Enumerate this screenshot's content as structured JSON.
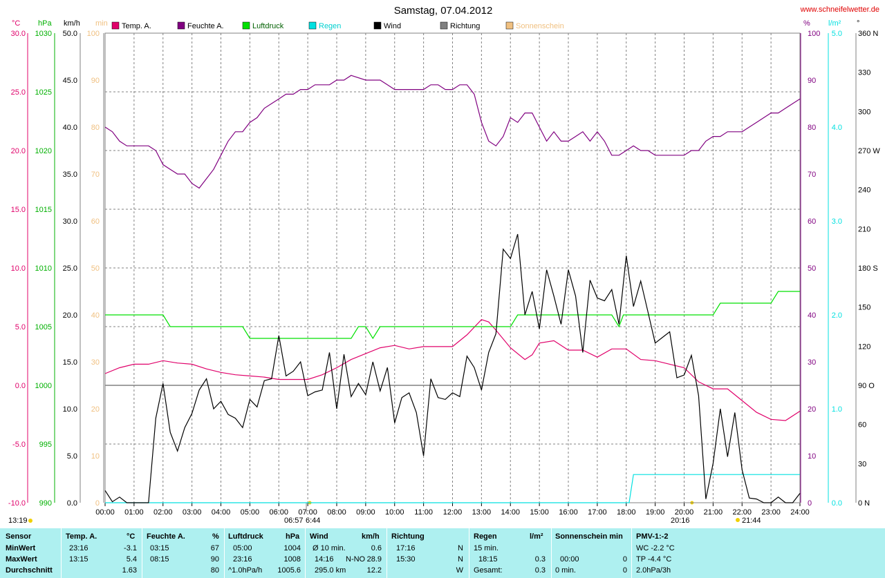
{
  "site": "www.schneifelwetter.de",
  "chart_data": {
    "type": "line",
    "title": "Samstag, 07.04.2012",
    "x_ticks": [
      "00:00",
      "01:00",
      "02:00",
      "03:00",
      "04:00",
      "05:00",
      "06:00",
      "07:00",
      "08:00",
      "09:00",
      "10:00",
      "11:00",
      "12:00",
      "13:00",
      "14:00",
      "15:00",
      "16:00",
      "17:00",
      "18:00",
      "19:00",
      "20:00",
      "21:00",
      "22:00",
      "23:00",
      "24:00"
    ],
    "axes": {
      "temp": {
        "unit": "°C",
        "range": [
          -10,
          30
        ],
        "ticks": [
          "30.0",
          "25.0",
          "20.0",
          "15.0",
          "10.0",
          "5.0",
          "0.0",
          "-5.0",
          "-10.0"
        ],
        "color": "#e0006a"
      },
      "pressure": {
        "unit": "hPa",
        "range": [
          990,
          1030
        ],
        "ticks": [
          "1030",
          "1025",
          "1020",
          "1015",
          "1010",
          "1005",
          "1000",
          "995",
          "990"
        ],
        "color": "#00b000"
      },
      "wind": {
        "unit": "km/h",
        "range": [
          0,
          50
        ],
        "ticks": [
          "50.0",
          "45.0",
          "40.0",
          "35.0",
          "30.0",
          "25.0",
          "20.0",
          "15.0",
          "10.0",
          "5.0",
          "0.0"
        ],
        "color": "#000000"
      },
      "sunshine": {
        "unit": "min",
        "range": [
          0,
          100
        ],
        "ticks": [
          "100",
          "90",
          "80",
          "70",
          "60",
          "50",
          "40",
          "30",
          "20",
          "10",
          "0"
        ],
        "color": "#f0c080"
      },
      "humidity": {
        "unit": "%",
        "range": [
          0,
          100
        ],
        "ticks": [
          "100",
          "90",
          "80",
          "70",
          "60",
          "50",
          "40",
          "30",
          "20",
          "10",
          "0"
        ],
        "color": "#800080"
      },
      "rain": {
        "unit": "l/m²",
        "range": [
          0,
          5
        ],
        "ticks": [
          "5.0",
          "4.0",
          "3.0",
          "2.0",
          "1.0",
          "0.0"
        ],
        "color": "#00e0e0"
      },
      "direction": {
        "unit": "°",
        "range": [
          0,
          360
        ],
        "ticks": [
          "360 N",
          "330",
          "300",
          "270 W",
          "240",
          "210",
          "180 S",
          "150",
          "120",
          "90 O",
          "60",
          "30",
          "0 N"
        ]
      }
    },
    "legend": [
      {
        "name": "Temp. A.",
        "color": "#e0006a"
      },
      {
        "name": "Feuchte A.",
        "color": "#800080"
      },
      {
        "name": "Luftdruck",
        "color": "#00e000"
      },
      {
        "name": "Regen",
        "color": "#00e0e0"
      },
      {
        "name": "Wind",
        "color": "#000000"
      },
      {
        "name": "Richtung",
        "color": "#808080"
      },
      {
        "name": "Sonnenschein",
        "color": "#f0c080"
      }
    ],
    "series": [
      {
        "name": "Temp. A.",
        "axis": "temp",
        "x": [
          0,
          0.5,
          1,
          1.5,
          2,
          2.5,
          3,
          3.5,
          4,
          4.5,
          5,
          5.5,
          6,
          6.5,
          7,
          7.5,
          8,
          8.5,
          9,
          9.5,
          10,
          10.5,
          11,
          11.5,
          12,
          12.5,
          13,
          13.25,
          13.5,
          14,
          14.5,
          14.75,
          15,
          15.5,
          16,
          16.5,
          17,
          17.5,
          18,
          18.5,
          19,
          19.5,
          20,
          20.5,
          21,
          21.5,
          22,
          22.5,
          23,
          23.5,
          24
        ],
        "values": [
          1.0,
          1.5,
          1.8,
          1.8,
          2.1,
          1.9,
          1.8,
          1.4,
          1.1,
          0.9,
          0.8,
          0.7,
          0.5,
          0.5,
          0.5,
          0.9,
          1.5,
          2.2,
          2.7,
          3.2,
          3.4,
          3.1,
          3.3,
          3.3,
          3.3,
          4.3,
          5.6,
          5.4,
          4.7,
          3.2,
          2.2,
          2.6,
          3.6,
          3.8,
          3.0,
          3.0,
          2.4,
          3.1,
          3.1,
          2.2,
          2.1,
          1.8,
          1.5,
          0.3,
          -0.3,
          -0.3,
          -1.3,
          -2.3,
          -2.9,
          -3.0,
          -2.2
        ]
      },
      {
        "name": "Feuchte A.",
        "axis": "humidity",
        "x": [
          0,
          0.25,
          0.5,
          0.75,
          1,
          1.5,
          1.75,
          2,
          2.25,
          2.5,
          2.75,
          3,
          3.25,
          3.5,
          3.75,
          4,
          4.25,
          4.5,
          4.75,
          5,
          5.25,
          5.5,
          5.75,
          6,
          6.25,
          6.5,
          6.75,
          7,
          7.25,
          7.5,
          7.75,
          8,
          8.25,
          8.5,
          9,
          9.25,
          9.5,
          9.75,
          10,
          10.5,
          10.75,
          11,
          11.25,
          11.5,
          11.75,
          12,
          12.25,
          12.5,
          12.75,
          13,
          13.25,
          13.5,
          13.75,
          14,
          14.25,
          14.5,
          14.75,
          15,
          15.25,
          15.5,
          15.75,
          16,
          16.25,
          16.5,
          16.75,
          17,
          17.25,
          17.5,
          17.75,
          18,
          18.25,
          18.5,
          18.75,
          19,
          19.25,
          19.5,
          19.75,
          20,
          20.25,
          20.5,
          20.75,
          21,
          21.25,
          21.5,
          21.75,
          22,
          22.25,
          22.5,
          22.75,
          23,
          23.25,
          23.5,
          23.75,
          24
        ],
        "values": [
          80,
          79,
          77,
          76,
          76,
          76,
          75,
          72,
          71,
          70,
          70,
          68,
          67,
          69,
          71,
          74,
          77,
          79,
          79,
          81,
          82,
          84,
          85,
          86,
          87,
          87,
          88,
          88,
          89,
          89,
          89,
          90,
          90,
          91,
          90,
          90,
          90,
          89,
          88,
          88,
          88,
          88,
          89,
          89,
          88,
          88,
          89,
          89,
          87,
          81,
          77,
          76,
          78,
          82,
          81,
          83,
          83,
          80,
          77,
          79,
          77,
          77,
          78,
          79,
          77,
          79,
          77,
          74,
          74,
          75,
          76,
          75,
          75,
          74,
          74,
          74,
          74,
          74,
          75,
          75,
          77,
          78,
          78,
          79,
          79,
          79,
          80,
          81,
          82,
          83,
          83,
          84,
          85,
          86
        ],
        "note": ""
      },
      {
        "name": "Luftdruck",
        "axis": "pressure",
        "x": [
          0,
          2.0,
          2.25,
          4.75,
          5.0,
          8.5,
          8.75,
          9.0,
          9.25,
          9.5,
          13.0,
          14.0,
          14.25,
          14.75,
          15.0,
          17.5,
          17.75,
          17.9,
          18.0,
          20.5,
          21.0,
          21.25,
          23.0,
          23.25,
          24
        ],
        "values": [
          1006.0,
          1006.0,
          1005.0,
          1005.0,
          1004.0,
          1004.0,
          1005.0,
          1005.0,
          1004.0,
          1005.0,
          1005.0,
          1005.0,
          1006.0,
          1006.0,
          1006.0,
          1006.0,
          1005.0,
          1006.0,
          1006.0,
          1006.0,
          1006.0,
          1007.0,
          1007.0,
          1008.0,
          1008.0
        ]
      },
      {
        "name": "Regen",
        "axis": "rain",
        "x": [
          0,
          18.1,
          18.25,
          24
        ],
        "values": [
          0,
          0,
          0.3,
          0.3
        ]
      },
      {
        "name": "Wind",
        "axis": "wind",
        "x": [
          0,
          0.25,
          0.5,
          0.75,
          1,
          1.25,
          1.5,
          1.75,
          2,
          2.25,
          2.5,
          2.75,
          3,
          3.25,
          3.5,
          3.75,
          4,
          4.25,
          4.5,
          4.75,
          5,
          5.25,
          5.5,
          5.75,
          6,
          6.25,
          6.5,
          6.75,
          7,
          7.25,
          7.5,
          7.75,
          8,
          8.25,
          8.5,
          8.75,
          9,
          9.25,
          9.5,
          9.75,
          10,
          10.25,
          10.5,
          10.75,
          11,
          11.25,
          11.5,
          11.75,
          12,
          12.25,
          12.5,
          12.75,
          13,
          13.25,
          13.5,
          13.75,
          14,
          14.25,
          14.5,
          14.75,
          15,
          15.25,
          15.5,
          15.75,
          16,
          16.25,
          16.5,
          16.75,
          17,
          17.25,
          17.5,
          17.75,
          18,
          18.25,
          18.5,
          18.75,
          19,
          19.25,
          19.5,
          19.75,
          20,
          20.25,
          20.5,
          20.75,
          21,
          21.25,
          21.5,
          21.75,
          22,
          22.25,
          22.5,
          22.75,
          23,
          23.25,
          23.5,
          23.75,
          24
        ],
        "values": [
          1.3,
          0.1,
          0.6,
          0,
          0,
          0,
          0,
          9,
          12.7,
          7.5,
          5.5,
          8,
          9.5,
          12,
          13.2,
          10,
          10.8,
          9.4,
          9,
          8,
          11,
          10.2,
          13,
          13.2,
          17.8,
          13.5,
          14,
          15,
          11.4,
          11.8,
          12,
          16,
          10,
          15.8,
          11.3,
          12.7,
          11.5,
          15,
          11.9,
          14.4,
          8.5,
          11.2,
          11.7,
          9.6,
          5,
          13.2,
          11.2,
          11,
          11.7,
          11.3,
          15.6,
          14.4,
          12,
          16,
          18,
          27,
          26,
          28.6,
          20,
          22.5,
          18.5,
          24.8,
          22,
          19,
          24.8,
          22,
          16,
          23.7,
          21.8,
          21.5,
          22.7,
          19,
          26.3,
          20.9,
          23.6,
          20.3,
          17,
          17.6,
          18.2,
          13.3,
          13.6,
          15.7,
          11.4,
          0.4,
          4.2,
          10,
          4.9,
          9.6,
          3.5,
          0.5,
          0.4,
          0,
          0,
          0.6,
          0,
          0,
          1
        ]
      }
    ],
    "sun_markers": {
      "sunrise": "06:57",
      "sunrise_end": "6:44",
      "sunset": "20:16",
      "moon": "21:44",
      "left": "13:19"
    }
  },
  "table": {
    "headers": {
      "sensor": "Sensor",
      "temp": "Temp. A.",
      "temp_u": "°C",
      "hum": "Feuchte A.",
      "hum_u": "%",
      "press": "Luftdruck",
      "press_u": "hPa",
      "wind": "Wind",
      "wind_u": "km/h",
      "dir": "Richtung",
      "rain": "Regen",
      "rain_u": "l/m²",
      "sun": "Sonnenschein min",
      "pmv": "PMV-1:-2"
    },
    "rows": {
      "min": "MinWert",
      "max": "MaxWert",
      "avg": "Durchschnitt"
    },
    "temp": {
      "min_t": "23:16",
      "min_v": "-3.1",
      "max_t": "13:15",
      "max_v": "5.4",
      "avg_v": "1.63"
    },
    "hum": {
      "min_t": "03:15",
      "min_v": "67",
      "max_t": "08:15",
      "max_v": "90",
      "avg_v": "80"
    },
    "press": {
      "min_t": "05:00",
      "min_v": "1004",
      "max_t": "23:16",
      "max_v": "1008",
      "avg_t": "^1.0hPa/h",
      "avg_v": "1005.6"
    },
    "wind": {
      "min_t": "Ø 10 min.",
      "min_v": "0.6",
      "max_t": "14:16",
      "max_dir": "N-NO",
      "max_v": "28.9",
      "avg_t": "295.0 km",
      "avg_v": "12.2"
    },
    "dir": {
      "min_t": "17:16",
      "min_v": "N",
      "max_t": "15:30",
      "max_v": "N",
      "avg_v": "W"
    },
    "rain": {
      "min_t": "15 min.",
      "max_t": "18:15",
      "max_v": "0.3",
      "avg_t": "Gesamt:",
      "avg_v": "0.3"
    },
    "sun": {
      "max_t": "00:00",
      "max_v": "0",
      "avg_t": "0 min.",
      "avg_v": "0"
    },
    "pmv": {
      "wc": "WC -2.2 °C",
      "tp": "TP -4.4 °C",
      "tend": "2.0hPa/3h"
    }
  }
}
